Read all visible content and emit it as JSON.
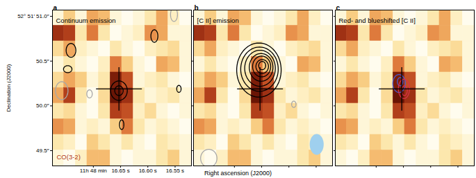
{
  "chart_data": {
    "type": "image",
    "xlabel": "Right ascension (J2000)",
    "ylabel": "Declination (J2000)",
    "xlim": [
      16.775,
      16.52
    ],
    "ylim": [
      49.33,
      51.07
    ],
    "xticks": [
      {
        "value": 16.7,
        "label": "11h 48 min"
      },
      {
        "value": 16.65,
        "label": "16.65 s"
      },
      {
        "value": 16.6,
        "label": "16.60 s"
      },
      {
        "value": 16.55,
        "label": "16.55 s"
      }
    ],
    "yticks": [
      {
        "value": 51.0,
        "label": "52° 51′ 51.0″"
      },
      {
        "value": 50.5,
        "label": "50.5″"
      },
      {
        "value": 50.0,
        "label": "50.0″"
      },
      {
        "value": 49.5,
        "label": "49.5″"
      }
    ],
    "map": {
      "name": "CO(3-2)",
      "x_edges": [
        16.775,
        16.75375,
        16.7325,
        16.71125,
        16.69,
        16.66875,
        16.6475,
        16.62625,
        16.605,
        16.58375,
        16.5625,
        16.54125,
        16.52
      ],
      "y_edges": [
        51.07,
        50.896,
        50.722,
        50.548,
        50.374,
        50.2,
        50.026,
        49.852,
        49.678,
        49.504,
        49.33
      ],
      "values": [
        [
          0.2,
          0.4,
          0.2,
          0.5,
          0.45,
          0.2,
          0.15,
          0.2,
          0.3,
          0.5,
          0.25,
          0.15
        ],
        [
          0.8,
          0.75,
          0.3,
          0.6,
          0.3,
          0.15,
          0.2,
          0.25,
          0.55,
          0.5,
          0.2,
          0.2
        ],
        [
          0.35,
          0.5,
          0.25,
          0.2,
          0.15,
          0.3,
          0.2,
          0.15,
          0.25,
          0.3,
          0.35,
          0.2
        ],
        [
          0.2,
          0.3,
          0.2,
          0.15,
          0.25,
          0.6,
          0.4,
          0.2,
          0.15,
          0.5,
          0.45,
          0.2
        ],
        [
          0.35,
          0.5,
          0.4,
          0.2,
          0.3,
          0.9,
          0.7,
          0.2,
          0.25,
          0.3,
          0.2,
          0.15
        ],
        [
          0.5,
          0.75,
          0.3,
          0.15,
          0.35,
          0.95,
          0.8,
          0.3,
          0.2,
          0.25,
          0.3,
          0.2
        ],
        [
          0.3,
          0.35,
          0.2,
          0.15,
          0.3,
          0.75,
          0.7,
          0.25,
          0.35,
          0.2,
          0.15,
          0.2
        ],
        [
          0.55,
          0.5,
          0.2,
          0.25,
          0.2,
          0.4,
          0.6,
          0.3,
          0.2,
          0.25,
          0.2,
          0.15
        ],
        [
          0.3,
          0.25,
          0.15,
          0.4,
          0.3,
          0.2,
          0.3,
          0.2,
          0.15,
          0.3,
          0.25,
          0.2
        ],
        [
          0.2,
          0.15,
          0.25,
          0.45,
          0.45,
          0.2,
          0.15,
          0.2,
          0.2,
          0.3,
          0.4,
          0.2
        ]
      ]
    },
    "cross": {
      "x": 16.653,
      "y": 50.19
    },
    "panels": [
      {
        "label": "a",
        "title": "Continuum emission",
        "contours": [
          {
            "color": "#000000",
            "x": [
              16.653,
              16.653,
              16.741,
              16.747,
              16.588,
              16.543,
              16.648
            ],
            "y": [
              50.17,
              50.17,
              50.62,
              50.41,
              50.78,
              50.19,
              49.79
            ],
            "rx": [
              0.0153,
              0.0077,
              0.0089,
              0.0077,
              0.0064,
              0.004,
              0.004
            ],
            "ry": [
              0.108,
              0.054,
              0.077,
              0.039,
              0.07,
              0.039,
              0.054
            ]
          },
          {
            "color": "#a8a8a8",
            "x": [
              16.758,
              16.552,
              16.707
            ],
            "y": [
              50.17,
              51.02,
              50.134
            ],
            "rx": [
              0.0115,
              0.0064,
              0.005
            ],
            "ry": [
              0.1,
              0.077,
              0.045
            ]
          }
        ]
      },
      {
        "label": "b",
        "title": "[C II] emission",
        "tick_labels": false,
        "contours": [
          {
            "color": "#000000",
            "x": [
              16.655,
              16.654,
              16.653,
              16.651,
              16.65,
              16.649,
              16.649
            ],
            "y": [
              50.4,
              50.41,
              50.42,
              50.43,
              50.44,
              50.44,
              50.45
            ],
            "rx": [
              0.0408,
              0.0344,
              0.0281,
              0.0217,
              0.0166,
              0.0115,
              0.0064
            ],
            "ry": [
              0.302,
              0.247,
              0.201,
              0.155,
              0.116,
              0.077,
              0.046
            ]
          },
          {
            "color": "#a8a8a8",
            "x": [
              16.747,
              16.591
            ],
            "y": [
              49.415,
              50.018
            ],
            "rx": [
              0.015,
              0.004
            ],
            "ry": [
              0.1,
              0.035
            ]
          }
        ],
        "beam": {
          "x": 16.549,
          "y": 49.57,
          "rx": 0.0128,
          "ry": 0.116,
          "color": "#9fd0ee"
        }
      },
      {
        "label": "c",
        "title": "Red- and blueshifted [C II]",
        "tick_labels": false,
        "contours": [
          {
            "color": "#4a5ad0",
            "x": [
              16.658,
              16.656
            ],
            "y": [
              50.25,
              50.27
            ],
            "rx": [
              0.0115,
              0.0051
            ],
            "ry": [
              0.1,
              0.046
            ]
          },
          {
            "color": "#d8304a",
            "x": [
              16.649,
              16.648
            ],
            "y": [
              50.19,
              50.17
            ],
            "rx": [
              0.0102,
              0.0051
            ],
            "ry": [
              0.108,
              0.054
            ]
          }
        ]
      }
    ]
  }
}
